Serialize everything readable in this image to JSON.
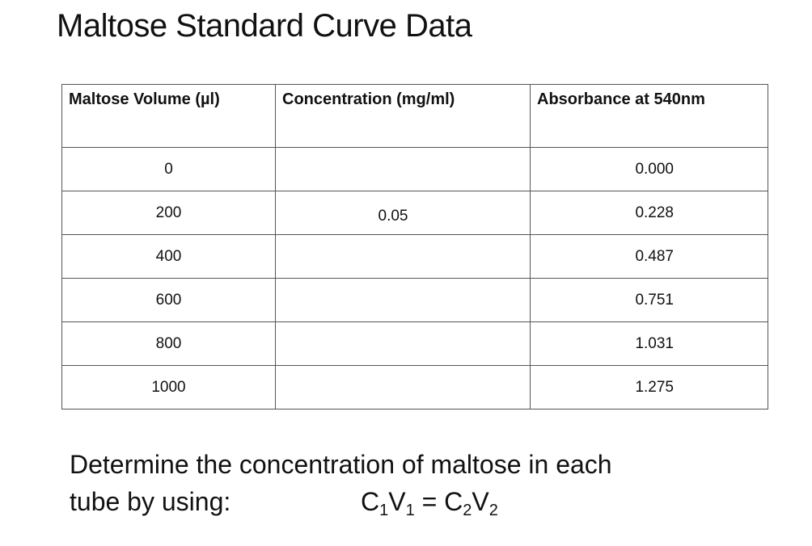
{
  "title": "Maltose Standard Curve Data",
  "table": {
    "headers": [
      "Maltose Volume (µl)",
      "Concentration (mg/ml)",
      "Absorbance at 540nm"
    ],
    "rows": [
      {
        "volume": "0",
        "concentration": "",
        "absorbance": "0.000"
      },
      {
        "volume": "200",
        "concentration": "0.05",
        "absorbance": "0.228"
      },
      {
        "volume": "400",
        "concentration": "",
        "absorbance": "0.487"
      },
      {
        "volume": "600",
        "concentration": "",
        "absorbance": "0.751"
      },
      {
        "volume": "800",
        "concentration": "",
        "absorbance": "1.031"
      },
      {
        "volume": "1000",
        "concentration": "",
        "absorbance": "1.275"
      }
    ]
  },
  "instruction": {
    "line1": "Determine the concentration of maltose in each",
    "line2": "tube by using:"
  },
  "formula": {
    "c": "C",
    "v": "V",
    "sub1": "1",
    "sub2": "2",
    "equals": "="
  }
}
